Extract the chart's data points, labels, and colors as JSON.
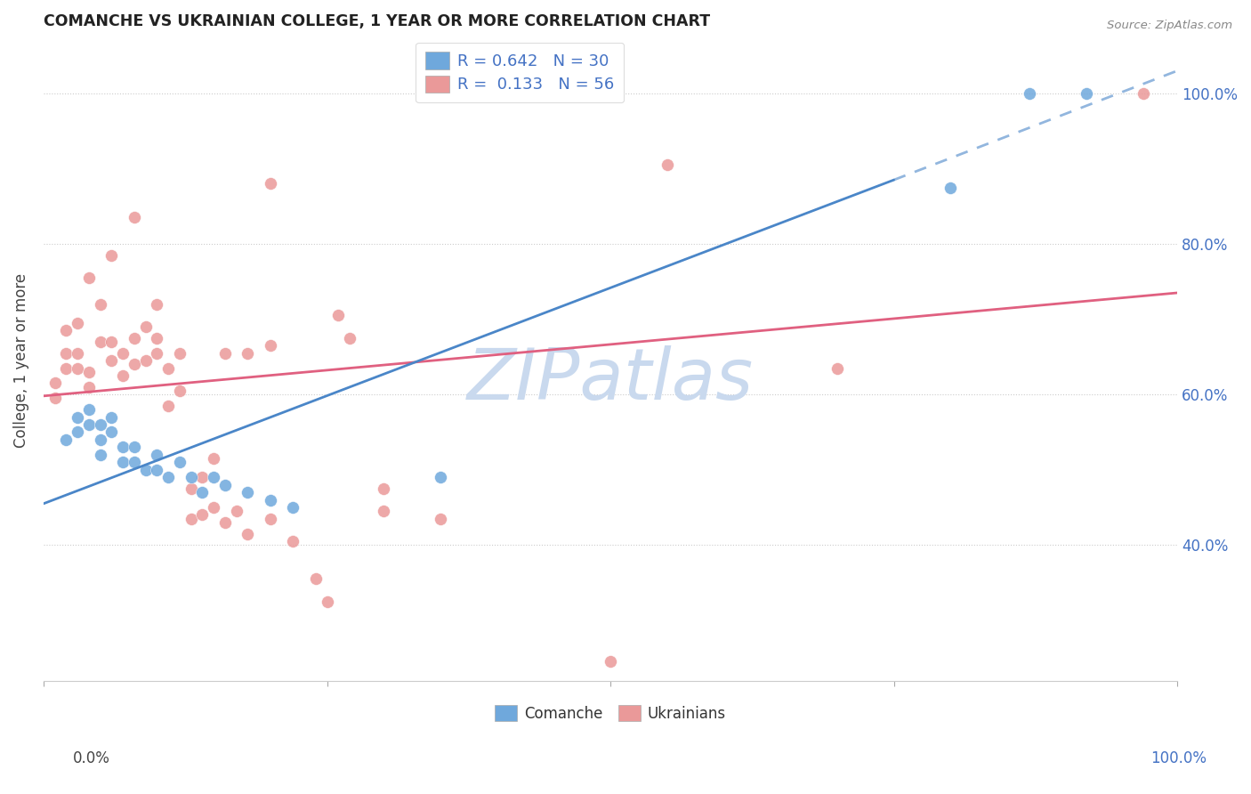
{
  "title": "COMANCHE VS UKRAINIAN COLLEGE, 1 YEAR OR MORE CORRELATION CHART",
  "source": "Source: ZipAtlas.com",
  "ylabel": "College, 1 year or more",
  "ytick_labels": [
    "40.0%",
    "60.0%",
    "80.0%",
    "100.0%"
  ],
  "ytick_values": [
    0.4,
    0.6,
    0.8,
    1.0
  ],
  "xlim": [
    0.0,
    1.0
  ],
  "ylim": [
    0.22,
    1.07
  ],
  "comanche_R": 0.642,
  "comanche_N": 30,
  "ukrainian_R": 0.133,
  "ukrainian_N": 56,
  "comanche_color": "#6fa8dc",
  "ukrainian_color": "#ea9999",
  "comanche_line_color": "#4a86c8",
  "ukrainian_line_color": "#e06080",
  "watermark": "ZIPatlas",
  "watermark_color": "#c9d9ee",
  "comanche_points": [
    [
      0.02,
      0.54
    ],
    [
      0.03,
      0.57
    ],
    [
      0.03,
      0.55
    ],
    [
      0.04,
      0.58
    ],
    [
      0.04,
      0.56
    ],
    [
      0.05,
      0.56
    ],
    [
      0.05,
      0.54
    ],
    [
      0.05,
      0.52
    ],
    [
      0.06,
      0.57
    ],
    [
      0.06,
      0.55
    ],
    [
      0.07,
      0.53
    ],
    [
      0.07,
      0.51
    ],
    [
      0.08,
      0.53
    ],
    [
      0.08,
      0.51
    ],
    [
      0.09,
      0.5
    ],
    [
      0.1,
      0.52
    ],
    [
      0.1,
      0.5
    ],
    [
      0.11,
      0.49
    ],
    [
      0.12,
      0.51
    ],
    [
      0.13,
      0.49
    ],
    [
      0.14,
      0.47
    ],
    [
      0.15,
      0.49
    ],
    [
      0.16,
      0.48
    ],
    [
      0.18,
      0.47
    ],
    [
      0.2,
      0.46
    ],
    [
      0.22,
      0.45
    ],
    [
      0.35,
      0.49
    ],
    [
      0.8,
      0.875
    ],
    [
      0.87,
      1.0
    ],
    [
      0.92,
      1.0
    ]
  ],
  "ukrainian_points": [
    [
      0.01,
      0.595
    ],
    [
      0.01,
      0.615
    ],
    [
      0.02,
      0.635
    ],
    [
      0.02,
      0.655
    ],
    [
      0.02,
      0.685
    ],
    [
      0.03,
      0.635
    ],
    [
      0.03,
      0.655
    ],
    [
      0.03,
      0.695
    ],
    [
      0.04,
      0.61
    ],
    [
      0.04,
      0.63
    ],
    [
      0.04,
      0.755
    ],
    [
      0.05,
      0.67
    ],
    [
      0.05,
      0.72
    ],
    [
      0.06,
      0.645
    ],
    [
      0.06,
      0.67
    ],
    [
      0.06,
      0.785
    ],
    [
      0.07,
      0.625
    ],
    [
      0.07,
      0.655
    ],
    [
      0.08,
      0.64
    ],
    [
      0.08,
      0.675
    ],
    [
      0.08,
      0.835
    ],
    [
      0.09,
      0.645
    ],
    [
      0.09,
      0.69
    ],
    [
      0.1,
      0.655
    ],
    [
      0.1,
      0.675
    ],
    [
      0.1,
      0.72
    ],
    [
      0.11,
      0.585
    ],
    [
      0.11,
      0.635
    ],
    [
      0.12,
      0.605
    ],
    [
      0.12,
      0.655
    ],
    [
      0.13,
      0.435
    ],
    [
      0.13,
      0.475
    ],
    [
      0.14,
      0.44
    ],
    [
      0.14,
      0.49
    ],
    [
      0.15,
      0.45
    ],
    [
      0.15,
      0.515
    ],
    [
      0.16,
      0.43
    ],
    [
      0.16,
      0.655
    ],
    [
      0.17,
      0.445
    ],
    [
      0.18,
      0.415
    ],
    [
      0.18,
      0.655
    ],
    [
      0.2,
      0.435
    ],
    [
      0.2,
      0.665
    ],
    [
      0.22,
      0.405
    ],
    [
      0.24,
      0.355
    ],
    [
      0.25,
      0.325
    ],
    [
      0.26,
      0.705
    ],
    [
      0.27,
      0.675
    ],
    [
      0.3,
      0.475
    ],
    [
      0.3,
      0.445
    ],
    [
      0.35,
      0.435
    ],
    [
      0.5,
      0.245
    ],
    [
      0.55,
      0.905
    ],
    [
      0.7,
      0.635
    ],
    [
      0.97,
      1.0
    ],
    [
      0.2,
      0.88
    ]
  ],
  "comanche_trendline_solid": [
    [
      0.0,
      0.455
    ],
    [
      0.75,
      0.885
    ]
  ],
  "comanche_trendline_dashed": [
    [
      0.75,
      0.885
    ],
    [
      1.0,
      1.03
    ]
  ],
  "ukrainian_trendline": [
    [
      0.0,
      0.598
    ],
    [
      1.0,
      0.735
    ]
  ],
  "grid_color": "#cccccc",
  "bg_color": "#ffffff",
  "axis_label_color": "#4472c4",
  "title_color": "#222222",
  "ylabel_color": "#444444",
  "legend_label_color": "#4472c4"
}
